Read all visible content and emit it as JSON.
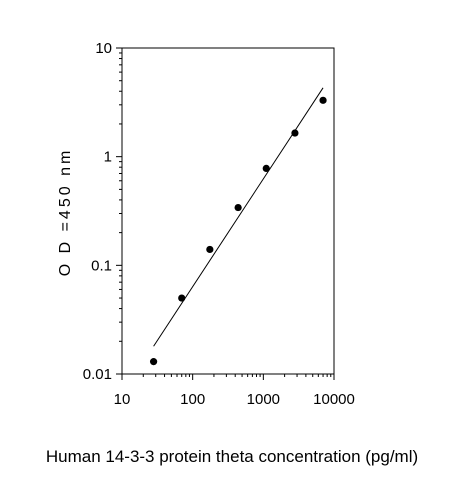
{
  "chart_data": {
    "type": "scatter",
    "title": "",
    "xlabel": "Human 14-3-3 protein theta  concentration (pg/ml)",
    "ylabel": "O D =450  nm",
    "x_scale": "log",
    "y_scale": "log",
    "xlim": [
      10,
      10000
    ],
    "ylim": [
      0.01,
      10
    ],
    "x_ticks": [
      "10",
      "100",
      "1000",
      "10000"
    ],
    "y_ticks": [
      "0.01",
      "0.1",
      "1",
      "10"
    ],
    "grid": false,
    "legend": "none",
    "series": [
      {
        "points": [
          {
            "x": 28,
            "y": 0.013
          },
          {
            "x": 70,
            "y": 0.05
          },
          {
            "x": 175,
            "y": 0.14
          },
          {
            "x": 440,
            "y": 0.34
          },
          {
            "x": 1100,
            "y": 0.78
          },
          {
            "x": 2800,
            "y": 1.65
          },
          {
            "x": 7000,
            "y": 3.3
          }
        ],
        "color": "#000000"
      }
    ],
    "fit_line": {
      "type": "log-log linear",
      "points": [
        {
          "x": 28,
          "y": 0.018
        },
        {
          "x": 7000,
          "y": 4.3
        }
      ],
      "color": "#000000"
    }
  }
}
